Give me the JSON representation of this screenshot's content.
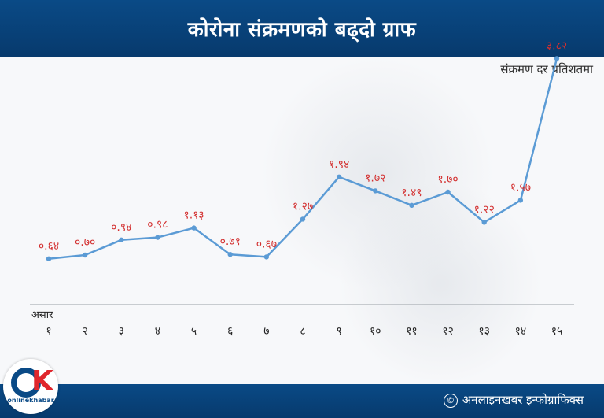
{
  "header": {
    "title": "कोरोना संक्रमणको बढ्दो ग्राफ"
  },
  "subtitle": "संक्रमण दर प्रतिशतमा",
  "chart_data": {
    "type": "line",
    "xlabel": "असार",
    "categories": [
      "१",
      "२",
      "३",
      "४",
      "५",
      "६",
      "७",
      "८",
      "९",
      "१०",
      "११",
      "१२",
      "१३",
      "१४",
      "१५"
    ],
    "values": [
      0.64,
      0.7,
      0.94,
      0.98,
      1.13,
      0.71,
      0.67,
      1.27,
      1.94,
      1.72,
      1.49,
      1.7,
      1.22,
      1.57,
      3.82
    ],
    "value_labels": [
      "०.६४",
      "०.७०",
      "०.९४",
      "०.९८",
      "१.१३",
      "०.७१",
      "०.६७",
      "१.२७",
      "१.९४",
      "१.७२",
      "१.४९",
      "१.७०",
      "१.२२",
      "१.५७",
      "३.८२"
    ],
    "ylim": [
      0,
      4
    ],
    "grid": false,
    "line_color": "#5b9bd5",
    "label_color": "#d32f2f"
  },
  "footer": {
    "credit": "अनलाइनखबर इन्फोग्राफिक्स",
    "copyright_symbol": "©"
  },
  "logo": {
    "brand": "onlinekhabar"
  }
}
